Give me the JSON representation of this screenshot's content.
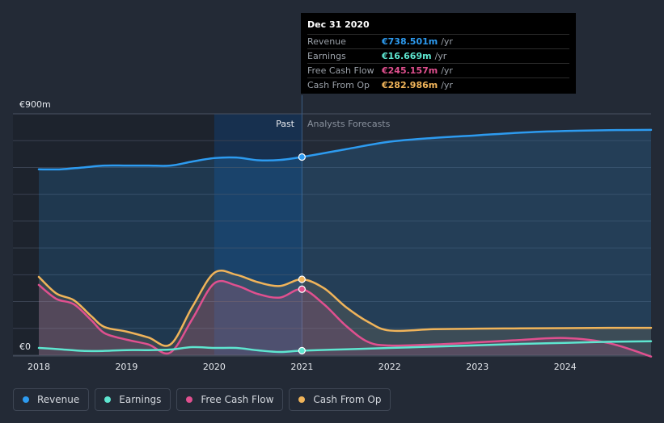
{
  "tooltip": {
    "date": "Dec 31 2020",
    "rows": [
      {
        "label": "Revenue",
        "value": "€738.501m",
        "unit": "/yr",
        "color": "#2d9bf0"
      },
      {
        "label": "Earnings",
        "value": "€16.669m",
        "unit": "/yr",
        "color": "#5ee6d0"
      },
      {
        "label": "Free Cash Flow",
        "value": "€245.157m",
        "unit": "/yr",
        "color": "#e0508f"
      },
      {
        "label": "Cash From Op",
        "value": "€282.986m",
        "unit": "/yr",
        "color": "#f0b45a"
      }
    ]
  },
  "legend": [
    {
      "label": "Revenue",
      "color": "#2d9bf0"
    },
    {
      "label": "Earnings",
      "color": "#5ee6d0"
    },
    {
      "label": "Free Cash Flow",
      "color": "#e0508f"
    },
    {
      "label": "Cash From Op",
      "color": "#f0b45a"
    }
  ],
  "chart_data": {
    "type": "line",
    "y_top_label": "€900m",
    "y_zero_label": "€0",
    "ylim": [
      0,
      900
    ],
    "xlim": [
      2018.0,
      2024.98
    ],
    "x_ticks": [
      2018,
      2019,
      2020,
      2021,
      2022,
      2023,
      2024
    ],
    "past_label": "Past",
    "forecast_label": "Analysts Forecasts",
    "divider_x": 2021.0,
    "highlight_range": [
      2020.0,
      2021.0
    ],
    "marker_x": 2021.0,
    "series": [
      {
        "name": "Revenue",
        "color": "#2d9bf0",
        "fill": true,
        "x": [
          2018.0,
          2018.25,
          2018.5,
          2018.75,
          2019.0,
          2019.25,
          2019.5,
          2019.75,
          2020.0,
          2020.25,
          2020.5,
          2020.75,
          2021.0,
          2021.5,
          2022.0,
          2022.5,
          2023.0,
          2023.5,
          2024.0,
          2024.5,
          2024.98
        ],
        "y": [
          693,
          693,
          700,
          707,
          707,
          707,
          707,
          722,
          735,
          737,
          727,
          728,
          739,
          768,
          796,
          810,
          820,
          830,
          836,
          839,
          840
        ]
      },
      {
        "name": "Earnings",
        "color": "#5ee6d0",
        "fill": false,
        "x": [
          2018.0,
          2018.25,
          2018.5,
          2018.75,
          2019.0,
          2019.25,
          2019.5,
          2019.75,
          2020.0,
          2020.25,
          2020.5,
          2020.75,
          2021.0,
          2021.5,
          2022.0,
          2022.5,
          2023.0,
          2023.5,
          2024.0,
          2024.5,
          2024.98
        ],
        "y": [
          27,
          22,
          16,
          16,
          19,
          19,
          21,
          30,
          27,
          27,
          18,
          12,
          17,
          22,
          27,
          32,
          37,
          42,
          46,
          50,
          52
        ]
      },
      {
        "name": "Free Cash Flow",
        "color": "#e0508f",
        "fill": true,
        "x": [
          2018.0,
          2018.2,
          2018.4,
          2018.6,
          2018.75,
          2019.0,
          2019.25,
          2019.5,
          2019.75,
          2020.0,
          2020.25,
          2020.5,
          2020.75,
          2021.0,
          2021.25,
          2021.5,
          2021.75,
          2022.0,
          2022.5,
          2023.0,
          2023.5,
          2024.0,
          2024.5,
          2024.98
        ],
        "y": [
          262,
          210,
          190,
          130,
          82,
          58,
          40,
          10,
          135,
          268,
          260,
          228,
          215,
          246,
          190,
          110,
          50,
          36,
          40,
          48,
          57,
          64,
          45,
          -5
        ]
      },
      {
        "name": "Cash From Op",
        "color": "#f0b45a",
        "fill": true,
        "x": [
          2018.0,
          2018.2,
          2018.4,
          2018.6,
          2018.75,
          2019.0,
          2019.25,
          2019.5,
          2019.75,
          2020.0,
          2020.25,
          2020.5,
          2020.75,
          2021.0,
          2021.25,
          2021.5,
          2021.75,
          2022.0,
          2022.5,
          2023.0,
          2023.5,
          2024.0,
          2024.5,
          2024.98
        ],
        "y": [
          292,
          230,
          205,
          145,
          105,
          88,
          66,
          40,
          180,
          307,
          300,
          272,
          258,
          283,
          250,
          180,
          125,
          92,
          97,
          99,
          100,
          101,
          102,
          102
        ]
      }
    ]
  }
}
